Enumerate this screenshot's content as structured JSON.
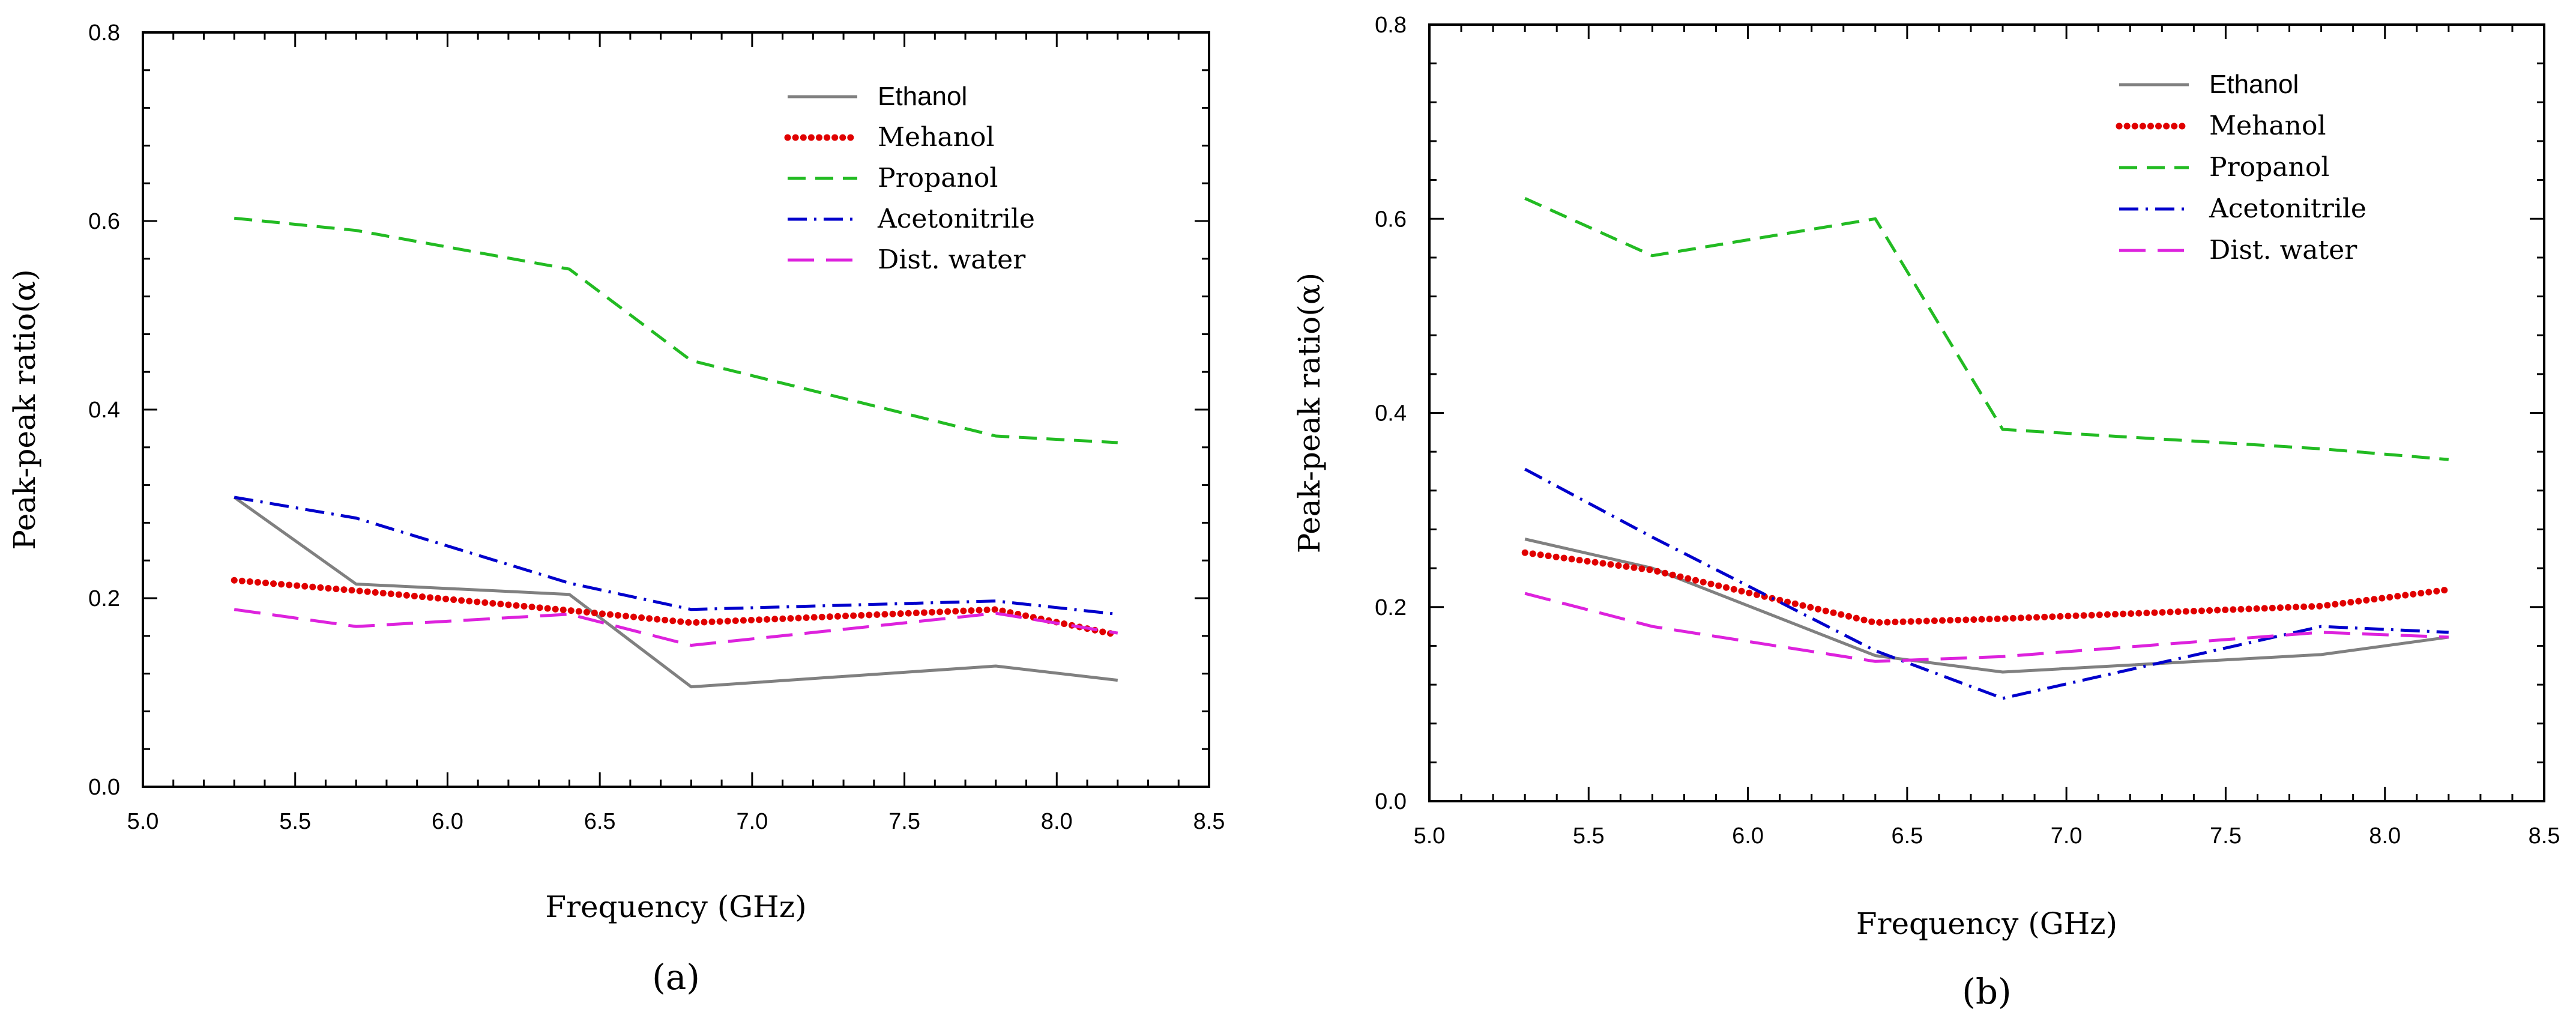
{
  "chart_data": [
    {
      "panel": "(a)",
      "type": "line",
      "xlabel": "Frequency (GHz)",
      "ylabel": "Peak-peak ratio(α)",
      "xlim": [
        5.0,
        8.5
      ],
      "ylim": [
        0.0,
        0.8
      ],
      "xticks": [
        "5.0",
        "5.5",
        "6.0",
        "6.5",
        "7.0",
        "7.5",
        "8.0",
        "8.5"
      ],
      "yticks": [
        "0.0",
        "0.2",
        "0.4",
        "0.6",
        "0.8"
      ],
      "legend_position": "top-right",
      "x": [
        5.3,
        5.7,
        6.4,
        6.8,
        7.8,
        8.2
      ],
      "series": [
        {
          "name": "Ethanol",
          "color": "#808080",
          "dash": "solid",
          "values": [
            0.307,
            0.215,
            0.204,
            0.106,
            0.128,
            0.113
          ]
        },
        {
          "name": "Mehanol",
          "color": "#e00000",
          "dash": "dotted",
          "values": [
            0.219,
            0.208,
            0.187,
            0.174,
            0.188,
            0.161
          ]
        },
        {
          "name": "Propanol",
          "color": "#22bb22",
          "dash": "dashed",
          "values": [
            0.603,
            0.59,
            0.549,
            0.452,
            0.372,
            0.365
          ]
        },
        {
          "name": "Acetonitrile",
          "color": "#0000cc",
          "dash": "dashdot",
          "values": [
            0.307,
            0.285,
            0.216,
            0.188,
            0.197,
            0.183
          ]
        },
        {
          "name": "Dist. water",
          "color": "#dd22dd",
          "dash": "longdash",
          "values": [
            0.188,
            0.17,
            0.183,
            0.15,
            0.184,
            0.163
          ]
        }
      ]
    },
    {
      "panel": "(b)",
      "type": "line",
      "xlabel": "Frequency (GHz)",
      "ylabel": "Peak-peak ratio(α)",
      "xlim": [
        5.0,
        8.5
      ],
      "ylim": [
        0.0,
        0.8
      ],
      "xticks": [
        "5.0",
        "5.5",
        "6.0",
        "6.5",
        "7.0",
        "7.5",
        "8.0",
        "8.5"
      ],
      "yticks": [
        "0.0",
        "0.2",
        "0.4",
        "0.6",
        "0.8"
      ],
      "legend_position": "top-right",
      "x": [
        5.3,
        5.7,
        6.4,
        6.8,
        7.8,
        8.2
      ],
      "series": [
        {
          "name": "Ethanol",
          "color": "#808080",
          "dash": "solid",
          "values": [
            0.27,
            0.24,
            0.15,
            0.133,
            0.151,
            0.169
          ]
        },
        {
          "name": "Mehanol",
          "color": "#e00000",
          "dash": "dotted",
          "values": [
            0.256,
            0.238,
            0.184,
            0.188,
            0.201,
            0.218
          ]
        },
        {
          "name": "Propanol",
          "color": "#22bb22",
          "dash": "dashed",
          "values": [
            0.621,
            0.562,
            0.6,
            0.383,
            0.363,
            0.352
          ]
        },
        {
          "name": "Acetonitrile",
          "color": "#0000cc",
          "dash": "dashdot",
          "values": [
            0.342,
            0.272,
            0.155,
            0.106,
            0.18,
            0.174
          ]
        },
        {
          "name": "Dist. water",
          "color": "#dd22dd",
          "dash": "longdash",
          "values": [
            0.214,
            0.18,
            0.144,
            0.149,
            0.174,
            0.169
          ]
        }
      ]
    }
  ]
}
